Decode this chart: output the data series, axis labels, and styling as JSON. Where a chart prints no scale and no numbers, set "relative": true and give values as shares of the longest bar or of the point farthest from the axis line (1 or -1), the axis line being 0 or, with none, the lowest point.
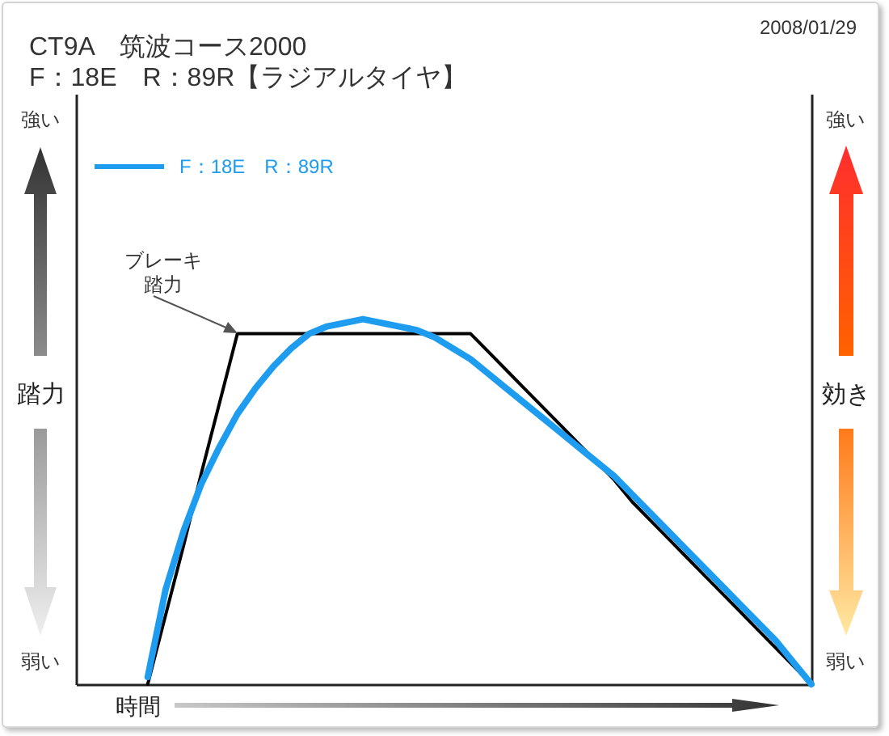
{
  "chart_data": {
    "type": "line",
    "title": "CT9A　筑波コース2000",
    "subtitle": "F：18E　R：89R【ラジアルタイヤ】",
    "xlabel": "時間",
    "ylabel": "踏力",
    "y2label": "効き",
    "annotations": [
      "2008/01/29",
      "強い",
      "弱い",
      "強い",
      "弱い",
      "ブレーキ踏力"
    ],
    "categories": [
      null,
      null,
      null,
      null,
      null,
      null,
      null,
      null,
      null,
      null,
      null,
      null,
      null,
      null,
      null,
      null,
      null,
      null,
      null,
      null,
      null,
      null,
      null,
      null,
      null,
      null,
      null,
      null,
      null,
      null,
      null,
      null,
      null,
      null,
      null,
      null,
      null,
      null,
      null,
      null,
      null,
      null
    ],
    "relative": true,
    "series": [
      {
        "color": "#000000",
        "values": [
          null,
          null,
          null,
          null,
          0,
          0.19,
          0.38,
          0.58,
          0.77,
          0.96,
          0.96,
          0.96,
          0.96,
          0.96,
          0.96,
          0.96,
          0.96,
          0.96,
          0.96,
          0.96,
          0.96,
          0.96,
          0.96,
          0.91,
          0.86,
          0.81,
          0.76,
          0.71,
          0.66,
          0.61,
          0.56,
          0.5,
          0.45,
          0.4,
          0.35,
          0.3,
          0.25,
          0.2,
          0.15,
          0.1,
          0.05,
          0
        ]
      },
      {
        "name": "F：18E　R：89R",
        "color": "#1e9cf0",
        "values": [
          null,
          null,
          null,
          null,
          0.02,
          0.26,
          0.42,
          0.55,
          0.65,
          0.74,
          0.81,
          0.87,
          0.92,
          0.96,
          0.98,
          0.99,
          1,
          0.99,
          0.98,
          0.97,
          0.95,
          0.92,
          0.89,
          0.85,
          0.81,
          0.77,
          0.73,
          0.69,
          0.65,
          0.61,
          0.57,
          0.52,
          0.47,
          0.42,
          0.37,
          0.32,
          0.27,
          0.22,
          0.17,
          0.12,
          0.06,
          0
        ]
      }
    ],
    "legend": "top left"
  }
}
